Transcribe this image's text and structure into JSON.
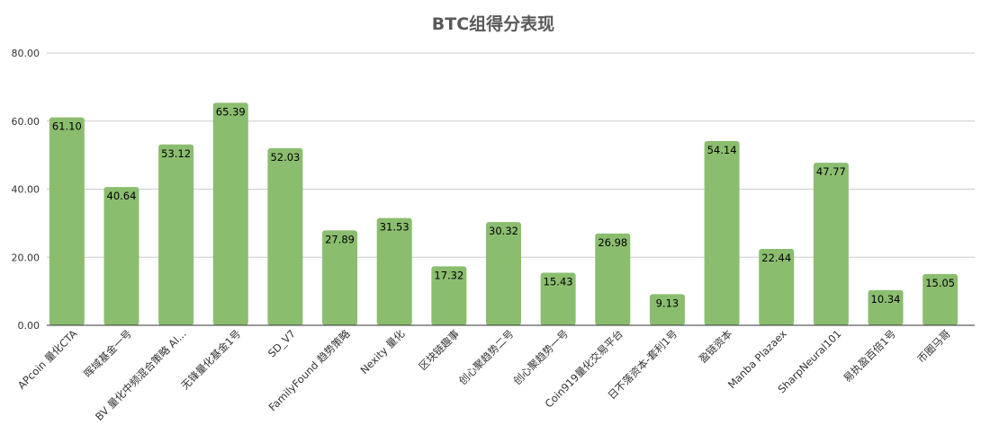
{
  "chart_data": {
    "type": "bar",
    "title": "BTC组得分表现",
    "xlabel": "",
    "ylabel": "",
    "ylim": [
      0,
      80
    ],
    "yticks": [
      "0.00",
      "20.00",
      "40.00",
      "60.00",
      "80.00"
    ],
    "grid": true,
    "legend": "none",
    "bar_color": "#8bbd6f",
    "categories": [
      "APcoin 量化CTA",
      "晖域基金一号",
      "BV 量化中频混合策略 Al...",
      "无锋量化基金1号",
      "SD_V7",
      "FamilyFound 趋势策略",
      "Nexity 量化",
      "区块链趣事",
      "创心聚趋势二号",
      "创心聚趋势一号",
      "Coin919量化交易平台",
      "日不落资本-套利1号",
      "盈链资本",
      "Manba Plazaex",
      "SharpNeural101",
      "易执盈百倍1号",
      "币圈马哥"
    ],
    "values": [
      61.1,
      40.64,
      53.12,
      65.39,
      52.03,
      27.89,
      31.53,
      17.32,
      30.32,
      15.43,
      26.98,
      9.13,
      54.14,
      22.44,
      47.77,
      10.34,
      15.05
    ],
    "value_labels": [
      "61.10",
      "40.64",
      "53.12",
      "65.39",
      "52.03",
      "27.89",
      "31.53",
      "17.32",
      "30.32",
      "15.43",
      "26.98",
      "9.13",
      "54.14",
      "22.44",
      "47.77",
      "10.34",
      "15.05"
    ]
  }
}
